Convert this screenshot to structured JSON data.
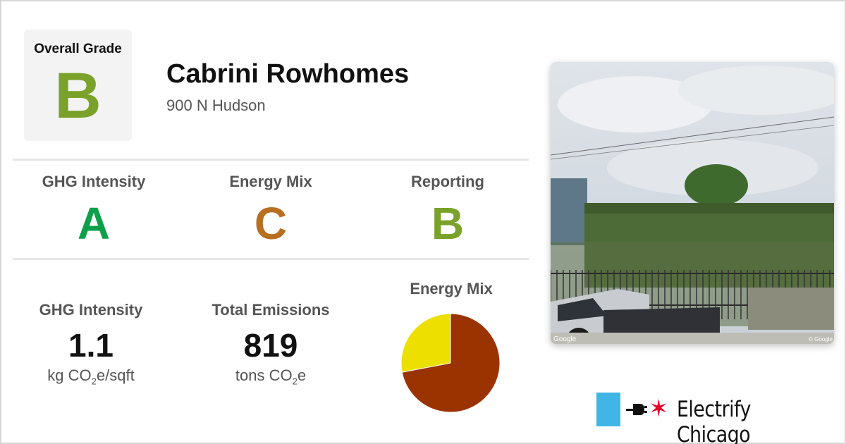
{
  "overall": {
    "label": "Overall Grade",
    "grade": "B",
    "color": "#7aa22a"
  },
  "building": {
    "name": "Cabrini Rowhomes",
    "address": "900 N Hudson"
  },
  "grades": [
    {
      "label": "GHG Intensity",
      "grade": "A",
      "color": "#0e9f4a"
    },
    {
      "label": "Energy Mix",
      "grade": "C",
      "color": "#b86f1f"
    },
    {
      "label": "Reporting",
      "grade": "B",
      "color": "#7aa22a"
    }
  ],
  "stats": {
    "ghg": {
      "label": "GHG Intensity",
      "value": "1.1",
      "unit_prefix": "kg CO",
      "unit_sub": "2",
      "unit_suffix": "e/sqft"
    },
    "emissions": {
      "label": "Total Emissions",
      "value": "819",
      "unit_prefix": "tons CO",
      "unit_sub": "2",
      "unit_suffix": "e"
    }
  },
  "energy_mix": {
    "label": "Energy Mix",
    "slices": [
      {
        "fraction": 0.72,
        "color": "#9a3300"
      },
      {
        "fraction": 0.28,
        "color": "#ede000"
      }
    ]
  },
  "photo": {
    "watermark": "Google",
    "watermark_right": "© Google"
  },
  "brand": {
    "name": "Electrify Chicago",
    "flag_color": "#41b6e6",
    "star_color": "#e4002b"
  }
}
